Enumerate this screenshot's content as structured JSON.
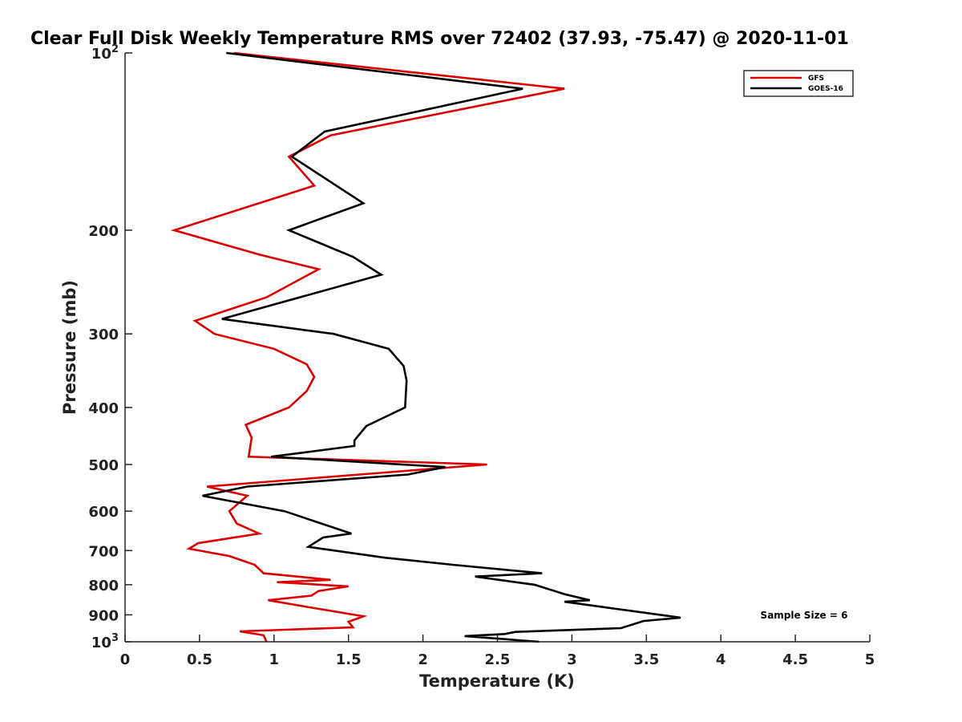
{
  "chart_data": {
    "type": "line",
    "title": "Clear Full Disk Weekly Temperature RMS over 72402 (37.93, -75.47) @ 2020-11-01",
    "xlabel": "Temperature (K)",
    "ylabel": "Pressure (mb)",
    "xlim": [
      0,
      5
    ],
    "ylim": [
      1000,
      100
    ],
    "y_scale": "log",
    "grid": false,
    "legend_position": "top-right",
    "x_ticks": [
      "0",
      "0.5",
      "1",
      "1.5",
      "2",
      "2.5",
      "3",
      "3.5",
      "4",
      "4.5",
      "5"
    ],
    "y_ticks": [
      {
        "value": 100,
        "base": "10",
        "exp": "2"
      },
      {
        "value": 200,
        "label": "200"
      },
      {
        "value": 300,
        "label": "300"
      },
      {
        "value": 400,
        "label": "400"
      },
      {
        "value": 500,
        "label": "500"
      },
      {
        "value": 600,
        "label": "600"
      },
      {
        "value": 700,
        "label": "700"
      },
      {
        "value": 800,
        "label": "800"
      },
      {
        "value": 900,
        "label": "900"
      },
      {
        "value": 1000,
        "base": "10",
        "exp": "3"
      }
    ],
    "annotation": "Sample Size = 6",
    "series": [
      {
        "name": "GFS",
        "color": "#dd0000",
        "points": [
          [
            0.73,
            100
          ],
          [
            2.95,
            115
          ],
          [
            1.38,
            138
          ],
          [
            1.1,
            150
          ],
          [
            1.27,
            168
          ],
          [
            0.33,
            200
          ],
          [
            0.9,
            220
          ],
          [
            1.3,
            233
          ],
          [
            0.95,
            260
          ],
          [
            0.47,
            285
          ],
          [
            0.6,
            300
          ],
          [
            1.0,
            318
          ],
          [
            1.22,
            338
          ],
          [
            1.27,
            355
          ],
          [
            1.22,
            375
          ],
          [
            1.1,
            400
          ],
          [
            0.81,
            428
          ],
          [
            0.85,
            450
          ],
          [
            0.83,
            485
          ],
          [
            2.43,
            500
          ],
          [
            0.55,
            545
          ],
          [
            0.82,
            565
          ],
          [
            0.7,
            600
          ],
          [
            0.75,
            630
          ],
          [
            0.9,
            655
          ],
          [
            0.49,
            680
          ],
          [
            0.43,
            695
          ],
          [
            0.7,
            715
          ],
          [
            0.87,
            740
          ],
          [
            0.93,
            765
          ],
          [
            1.38,
            785
          ],
          [
            1.02,
            792
          ],
          [
            1.5,
            805
          ],
          [
            1.3,
            820
          ],
          [
            1.25,
            835
          ],
          [
            0.96,
            850
          ],
          [
            1.25,
            875
          ],
          [
            1.6,
            905
          ],
          [
            1.5,
            925
          ],
          [
            1.53,
            945
          ],
          [
            0.77,
            960
          ],
          [
            0.93,
            975
          ],
          [
            0.95,
            1000
          ]
        ]
      },
      {
        "name": "GOES-16",
        "color": "#000000",
        "points": [
          [
            0.68,
            100
          ],
          [
            2.67,
            115
          ],
          [
            1.34,
            136
          ],
          [
            1.12,
            150
          ],
          [
            1.6,
            180
          ],
          [
            1.1,
            200
          ],
          [
            1.53,
            222
          ],
          [
            1.72,
            238
          ],
          [
            0.65,
            283
          ],
          [
            1.4,
            300
          ],
          [
            1.77,
            318
          ],
          [
            1.87,
            340
          ],
          [
            1.89,
            360
          ],
          [
            1.88,
            400
          ],
          [
            1.62,
            430
          ],
          [
            1.54,
            455
          ],
          [
            1.54,
            465
          ],
          [
            0.98,
            485
          ],
          [
            2.15,
            505
          ],
          [
            1.9,
            520
          ],
          [
            0.82,
            545
          ],
          [
            0.52,
            565
          ],
          [
            1.07,
            600
          ],
          [
            1.52,
            655
          ],
          [
            1.33,
            665
          ],
          [
            1.23,
            690
          ],
          [
            1.75,
            720
          ],
          [
            2.2,
            740
          ],
          [
            2.8,
            765
          ],
          [
            2.35,
            775
          ],
          [
            2.75,
            800
          ],
          [
            2.95,
            830
          ],
          [
            3.12,
            850
          ],
          [
            2.95,
            855
          ],
          [
            3.73,
            910
          ],
          [
            3.48,
            922
          ],
          [
            3.33,
            948
          ],
          [
            2.62,
            962
          ],
          [
            2.55,
            970
          ],
          [
            2.28,
            978
          ],
          [
            2.78,
            1000
          ]
        ]
      }
    ]
  }
}
